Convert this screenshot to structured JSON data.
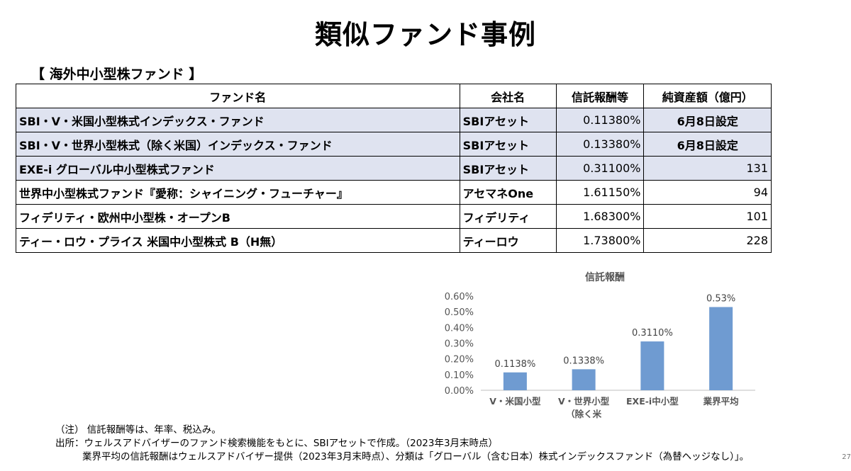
{
  "title": "類似ファンド事例",
  "section_label": "【 海外中小型株ファンド 】",
  "table": {
    "headers": [
      "ファンド名",
      "会社名",
      "信託報酬等",
      "純資産額（億円）"
    ],
    "rows": [
      {
        "name": "SBI・V・米国小型株式インデックス・ファンド",
        "company": "SBIアセット",
        "fee": "0.11380%",
        "aum": "6月8日設定",
        "highlight": true
      },
      {
        "name": "SBI・V・世界小型株式（除く米国）インデックス・ファンド",
        "company": "SBIアセット",
        "fee": "0.13380%",
        "aum": "6月8日設定",
        "highlight": true
      },
      {
        "name": "EXE-i グローバル中小型株式ファンド",
        "company": "SBIアセット",
        "fee": "0.31100%",
        "aum": "131",
        "highlight": true
      },
      {
        "name": "世界中小型株式ファンド『愛称：シャイニング・フューチャー』",
        "company": "アセマネOne",
        "fee": "1.61150%",
        "aum": "94",
        "highlight": false
      },
      {
        "name": "フィデリティ・欧州中小型株・オープンB",
        "company": "フィデリティ",
        "fee": "1.68300%",
        "aum": "101",
        "highlight": false
      },
      {
        "name": "ティー・ロウ・プライス 米国中小型株式 B（H無）",
        "company": "ティーロウ",
        "fee": "1.73800%",
        "aum": "228",
        "highlight": false
      }
    ]
  },
  "chart_data": {
    "type": "bar",
    "title": "信託報酬",
    "categories": [
      "V・米国小型",
      "V・世界小型\n（除く米",
      "EXE-i中小型",
      "業界平均"
    ],
    "values": [
      0.1138,
      0.1338,
      0.311,
      0.53
    ],
    "data_labels": [
      "0.1138%",
      "0.1338%",
      "0.3110%",
      "0.53%"
    ],
    "yticks": [
      "0.00%",
      "0.10%",
      "0.20%",
      "0.30%",
      "0.40%",
      "0.50%",
      "0.60%"
    ],
    "ylim": [
      0,
      0.6
    ],
    "bar_color": "#6f9bd1",
    "grid": false
  },
  "notes": [
    "（注） 信託報酬等は、年率、税込み。",
    "出所：ウェルスアドバイザーのファンド検索機能をもとに、SBIアセットで作成。（2023年3月末時点）",
    "業界平均の信託報酬はウェルスアドバイザー提供（2023年3月末時点）、分類は「グローバル（含む日本）株式インデックスファンド（為替ヘッジなし）」。"
  ],
  "page_number": "27"
}
